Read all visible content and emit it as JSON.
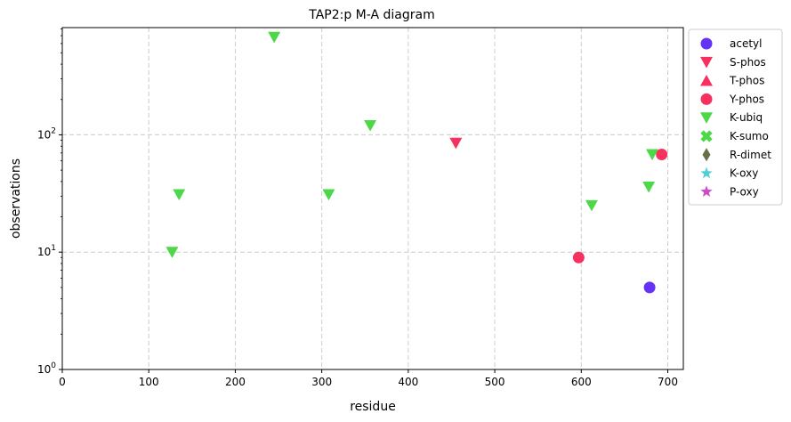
{
  "chart_data": {
    "type": "scatter",
    "title": "TAP2:p M-A diagram",
    "xlabel": "residue",
    "ylabel": "observations",
    "xlim": [
      0,
      718
    ],
    "ylim": [
      1,
      820
    ],
    "yscale": "log",
    "grid": true,
    "legend_position": "outside-right",
    "x_ticks": [
      {
        "value": 0,
        "label": "0"
      },
      {
        "value": 100,
        "label": "100"
      },
      {
        "value": 200,
        "label": "200"
      },
      {
        "value": 300,
        "label": "300"
      },
      {
        "value": 400,
        "label": "400"
      },
      {
        "value": 500,
        "label": "500"
      },
      {
        "value": 600,
        "label": "600"
      },
      {
        "value": 700,
        "label": "700"
      }
    ],
    "y_ticks": [
      {
        "value": 1,
        "base": "10",
        "exp": "0"
      },
      {
        "value": 10,
        "base": "10",
        "exp": "1"
      },
      {
        "value": 100,
        "base": "10",
        "exp": "2"
      }
    ],
    "series": [
      {
        "name": "acetyl",
        "marker": "circle",
        "color": "#6433f4",
        "points": [
          {
            "x": 679,
            "y": 5
          }
        ]
      },
      {
        "name": "S-phos",
        "marker": "triangle-down",
        "color": "#f6315f",
        "points": [
          {
            "x": 455,
            "y": 85
          }
        ]
      },
      {
        "name": "T-phos",
        "marker": "triangle-up",
        "color": "#f6315f",
        "points": []
      },
      {
        "name": "Y-phos",
        "marker": "circle",
        "color": "#f6315f",
        "points": [
          {
            "x": 597,
            "y": 9
          },
          {
            "x": 693,
            "y": 68
          }
        ]
      },
      {
        "name": "K-ubiq",
        "marker": "triangle-down",
        "color": "#4dd84a",
        "points": [
          {
            "x": 127,
            "y": 10
          },
          {
            "x": 135,
            "y": 31
          },
          {
            "x": 245,
            "y": 680
          },
          {
            "x": 308,
            "y": 31
          },
          {
            "x": 356,
            "y": 120
          },
          {
            "x": 612,
            "y": 25
          },
          {
            "x": 678,
            "y": 36
          },
          {
            "x": 682,
            "y": 68
          }
        ]
      },
      {
        "name": "K-sumo",
        "marker": "x-filled",
        "color": "#4dd84a",
        "points": []
      },
      {
        "name": "R-dimet",
        "marker": "thin-diamond",
        "color": "#6b6f49",
        "points": []
      },
      {
        "name": "K-oxy",
        "marker": "star",
        "color": "#4fcfd6",
        "points": []
      },
      {
        "name": "P-oxy",
        "marker": "star",
        "color": "#cc4bc8",
        "points": []
      }
    ]
  }
}
